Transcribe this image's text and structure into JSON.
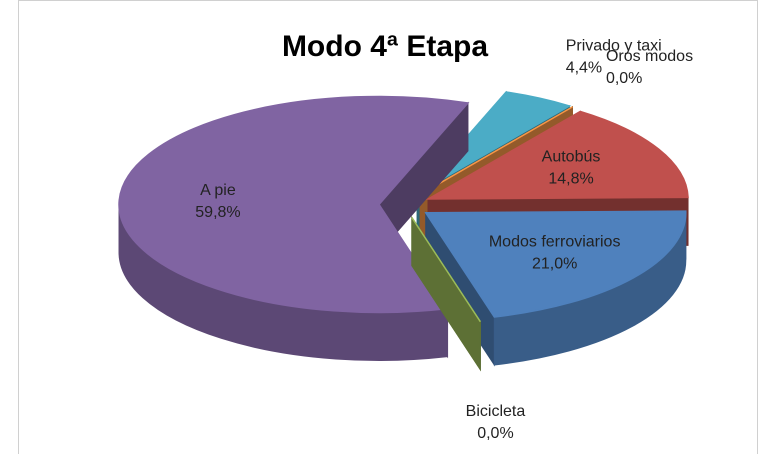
{
  "chart_data": {
    "type": "pie3d",
    "title": "Modo 4ª Etapa",
    "categories": [
      "Privado y taxi",
      "Oros modos",
      "Autobús",
      "Modos ferroviarios",
      "Bicicleta",
      "A pie"
    ],
    "values": [
      4.4,
      0.0,
      14.8,
      21.0,
      0.0,
      59.8
    ],
    "value_labels": [
      "4,4%",
      "0,0%",
      "14,8%",
      "21,0%",
      "0,0%",
      "59,8%"
    ],
    "colors": [
      "#4BACC6",
      "#F79646",
      "#C0504D",
      "#4F81BD",
      "#9BBB59",
      "#8064A2"
    ]
  }
}
